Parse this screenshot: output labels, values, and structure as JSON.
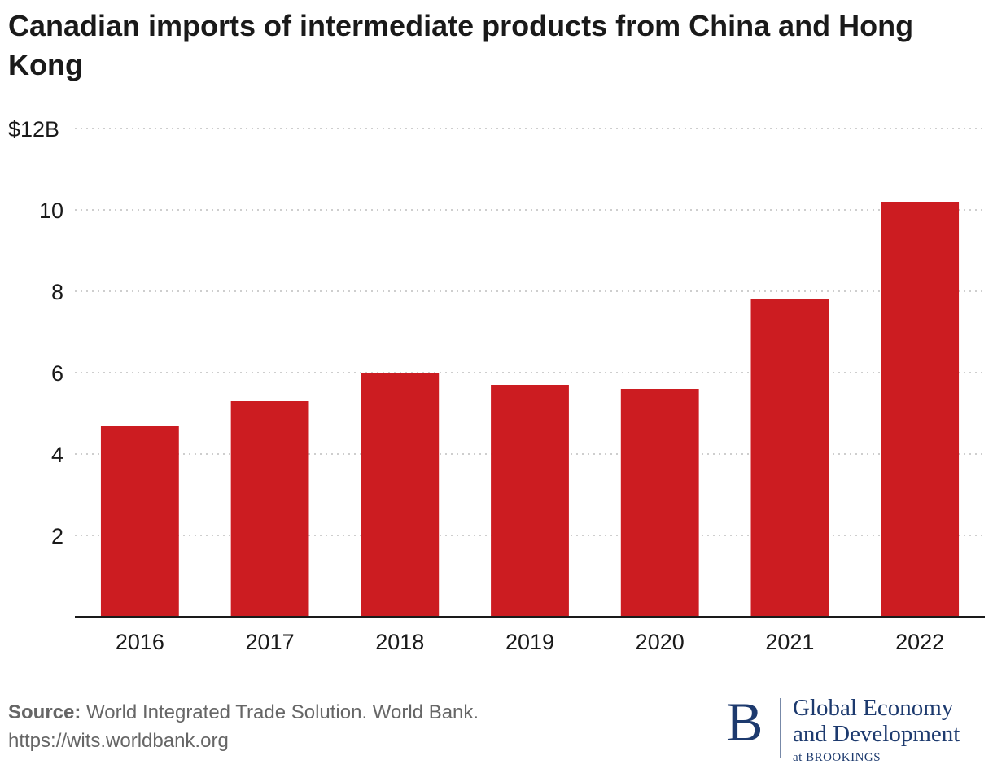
{
  "chart_data": {
    "type": "bar",
    "title": "Canadian imports of intermediate products from China and Hong Kong",
    "xlabel": "",
    "ylabel": "",
    "categories": [
      "2016",
      "2017",
      "2018",
      "2019",
      "2020",
      "2021",
      "2022"
    ],
    "values": [
      4.7,
      5.3,
      6.0,
      5.7,
      5.6,
      7.8,
      10.2
    ],
    "unit": "billions USD",
    "ylim": [
      0,
      12
    ],
    "yticks": [
      2,
      4,
      6,
      8,
      10,
      12
    ],
    "ytick_labels": [
      "2",
      "4",
      "6",
      "8",
      "10",
      "$12B"
    ],
    "grid": true,
    "bar_color": "#cc1c21"
  },
  "source": {
    "label": "Source:",
    "text": "World Integrated Trade Solution. World Bank.",
    "url": "https://wits.worldbank.org"
  },
  "branding": {
    "mark": "B",
    "line1": "Global Economy",
    "line2": "and Development",
    "line3": "at BROOKINGS",
    "color": "#1d3a6e"
  }
}
